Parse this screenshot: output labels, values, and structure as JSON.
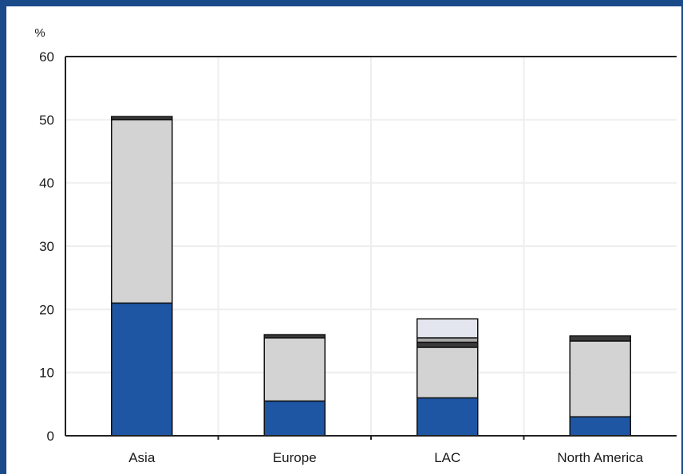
{
  "chart_data": {
    "type": "bar",
    "stacked": true,
    "categories": [
      "Asia",
      "Europe",
      "LAC",
      "North America"
    ],
    "series": [
      {
        "color": "#1f56a3",
        "values": [
          21,
          5.5,
          6,
          3
        ]
      },
      {
        "color": "#d3d3d3",
        "values": [
          29,
          10,
          8,
          12
        ]
      },
      {
        "color": "#3a3a3a",
        "values": [
          0.5,
          0.5,
          0.8,
          0.8
        ]
      },
      {
        "color": "#a8a8a8",
        "values": [
          0,
          0,
          0.7,
          0
        ]
      },
      {
        "color": "#e3e6ee",
        "values": [
          0,
          0,
          3,
          0
        ]
      }
    ],
    "yunit": "%",
    "ylim": [
      0,
      60
    ],
    "yticks": [
      0,
      10,
      20,
      30,
      40,
      50,
      60
    ],
    "grid": true
  }
}
